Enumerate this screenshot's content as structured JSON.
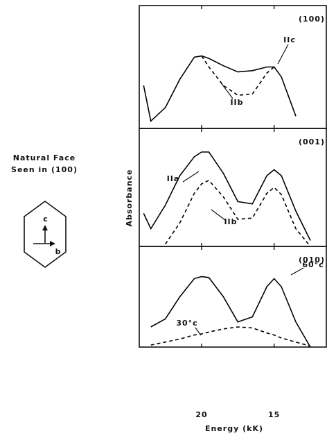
{
  "figure": {
    "caption": [
      "Natural Face",
      "Seen in (100)"
    ],
    "crystal_axes": [
      "c",
      "b"
    ],
    "y_label": "Absorbance",
    "x_label": "Energy (kK)"
  },
  "chart_data": [
    {
      "type": "line",
      "title": "(100)",
      "xlim": [
        24.3,
        11.4
      ],
      "ylim": [
        0,
        1
      ],
      "x": [
        24.0,
        23.5,
        22.5,
        21.5,
        20.5,
        20,
        19.5,
        18.5,
        17.5,
        16.5,
        15.5,
        15,
        14.5,
        13.5,
        12.5
      ],
      "series": [
        {
          "name": "IIc",
          "color": "#000000",
          "style": "solid",
          "values": [
            0.35,
            0.06,
            0.17,
            0.4,
            0.58,
            0.59,
            0.57,
            0.51,
            0.46,
            0.47,
            0.5,
            0.5,
            0.42,
            0.1,
            null
          ]
        },
        {
          "name": "IIb",
          "color": "#000000",
          "style": "dashed",
          "values": [
            null,
            null,
            null,
            null,
            null,
            0.59,
            0.5,
            0.35,
            0.27,
            0.28,
            0.45,
            0.5,
            null,
            null,
            null
          ]
        }
      ]
    },
    {
      "type": "line",
      "title": "(001)",
      "xlim": [
        24.3,
        11.4
      ],
      "ylim": [
        0,
        1
      ],
      "x": [
        24.0,
        23.5,
        22.5,
        21.5,
        20.5,
        20,
        19.5,
        18.5,
        17.5,
        16.5,
        15.5,
        15,
        14.5,
        13.5,
        12.5
      ],
      "series": [
        {
          "name": "IIa",
          "color": "#000000",
          "style": "solid",
          "values": [
            0.28,
            0.15,
            0.35,
            0.6,
            0.76,
            0.8,
            0.8,
            0.62,
            0.38,
            0.36,
            0.6,
            0.65,
            0.6,
            0.3,
            0.05
          ]
        },
        {
          "name": "IIb",
          "color": "#000000",
          "style": "dashed",
          "values": [
            null,
            null,
            0.02,
            0.2,
            0.45,
            0.53,
            0.56,
            0.42,
            0.23,
            0.24,
            0.45,
            0.5,
            0.44,
            0.15,
            0.0
          ]
        }
      ]
    },
    {
      "type": "line",
      "title": "(010)",
      "xlim": [
        24.3,
        11.4
      ],
      "ylim": [
        0,
        1
      ],
      "xticks": [
        20,
        15
      ],
      "x": [
        24.0,
        23.5,
        22.5,
        21.5,
        20.5,
        20,
        19.5,
        18.5,
        17.5,
        16.5,
        15.5,
        15,
        14.5,
        13.5,
        12.5
      ],
      "series": [
        {
          "name": "60°c",
          "color": "#000000",
          "style": "solid",
          "values": [
            null,
            0.2,
            0.28,
            0.5,
            0.68,
            0.7,
            0.69,
            0.5,
            0.25,
            0.3,
            0.6,
            0.68,
            0.6,
            0.25,
            0.0
          ]
        },
        {
          "name": "30°c",
          "color": "#000000",
          "style": "dashed",
          "values": [
            null,
            0.02,
            0.05,
            0.08,
            0.12,
            0.13,
            0.15,
            0.18,
            0.2,
            0.19,
            0.14,
            0.12,
            0.09,
            0.05,
            0.01
          ]
        }
      ]
    }
  ]
}
